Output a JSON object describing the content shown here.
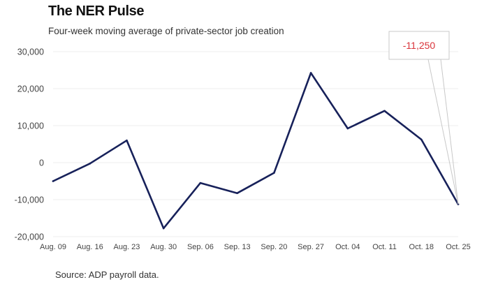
{
  "header": {
    "title": "The NER Pulse",
    "subtitle": "Four-week moving average of private-sector job creation"
  },
  "footer": {
    "source": "Source: ADP payroll data."
  },
  "chart_data": {
    "type": "line",
    "title": "The NER Pulse",
    "subtitle": "Four-week moving average of private-sector job creation",
    "xlabel": "",
    "ylabel": "",
    "categories": [
      "Aug. 09",
      "Aug. 16",
      "Aug. 23",
      "Aug. 30",
      "Sep. 06",
      "Sep. 13",
      "Sep. 20",
      "Sep. 27",
      "Oct. 04",
      "Oct. 11",
      "Oct. 18",
      "Oct. 25"
    ],
    "series": [
      {
        "values": [
          -5000,
          -250,
          6000,
          -17750,
          -5500,
          -8250,
          -2750,
          24250,
          9250,
          14000,
          6250,
          -11250
        ]
      }
    ],
    "ylim": [
      -20000,
      30000
    ],
    "yticks": [
      30000,
      20000,
      10000,
      0,
      -10000,
      -20000
    ],
    "ytick_labels": [
      "30,000",
      "20,000",
      "10,000",
      "0",
      "-10,000",
      "-20,000"
    ],
    "grid": true,
    "legend": "none",
    "annotation": {
      "category": "Oct. 25",
      "text": "-11,250"
    },
    "colors": {
      "line": "#17215a",
      "callout_text": "#d9343a",
      "callout_border": "#c8c8c8",
      "grid": "#ececec"
    }
  }
}
